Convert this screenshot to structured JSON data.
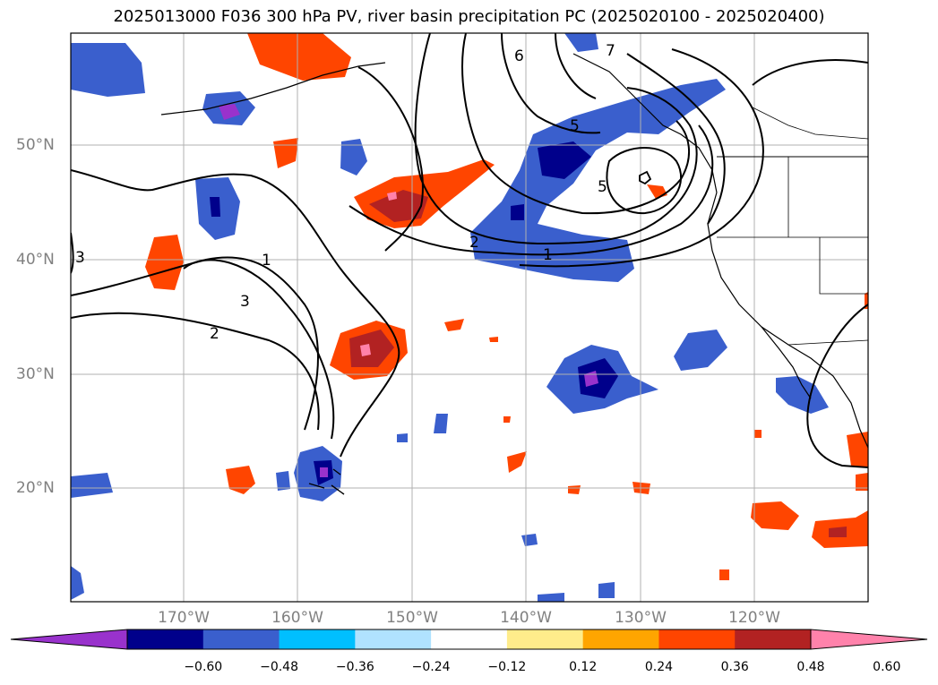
{
  "title": "2025013000 F036 300 hPa PV, river basin precipitation PC (2025020100 - 2025020400)",
  "lat_labels": [
    "50°N",
    "40°N",
    "30°N",
    "20°N"
  ],
  "lon_labels": [
    "170°W",
    "160°W",
    "150°W",
    "140°W",
    "130°W",
    "120°W"
  ],
  "pv_contour_labels": [
    "1",
    "2",
    "3",
    "5",
    "6",
    "7"
  ],
  "colorbar": {
    "ticks": [
      "−0.60",
      "−0.48",
      "−0.36",
      "−0.24",
      "−0.12",
      "0.12",
      "0.24",
      "0.36",
      "0.48",
      "0.60"
    ],
    "colors": [
      "#9932cc",
      "#00008b",
      "#3a5fcd",
      "#00bfff",
      "#b0e2ff",
      "#ffffff",
      "#ffec8b",
      "#ffa500",
      "#ff4500",
      "#b22222",
      "#ff82ab"
    ]
  },
  "colors": {
    "grid": "#b0b0b0",
    "contour": "#000000",
    "axis_label": "#808080"
  }
}
